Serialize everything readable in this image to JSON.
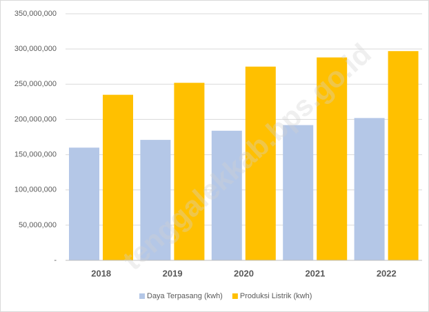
{
  "chart_data": {
    "type": "bar",
    "categories": [
      "2018",
      "2019",
      "2020",
      "2021",
      "2022"
    ],
    "series": [
      {
        "name": "Daya Terpasang (kwh)",
        "color": "#b4c7e7",
        "values": [
          160000000,
          171000000,
          184000000,
          192000000,
          202000000
        ]
      },
      {
        "name": "Produksi Listrik (kwh)",
        "color": "#ffc000",
        "values": [
          235000000,
          252000000,
          275000000,
          288000000,
          297000000
        ]
      }
    ],
    "ylim": [
      0,
      350000000
    ],
    "yticks": [
      {
        "value": 0,
        "label": "-"
      },
      {
        "value": 50000000,
        "label": "50,000,000"
      },
      {
        "value": 100000000,
        "label": "100,000,000"
      },
      {
        "value": 150000000,
        "label": "150,000,000"
      },
      {
        "value": 200000000,
        "label": "200,000,000"
      },
      {
        "value": 250000000,
        "label": "250,000,000"
      },
      {
        "value": 300000000,
        "label": "300,000,000"
      },
      {
        "value": 350000000,
        "label": "350,000,000"
      }
    ],
    "grid": true,
    "legend": "bottom",
    "watermark": "tenggalekkab.bps.go.id"
  }
}
